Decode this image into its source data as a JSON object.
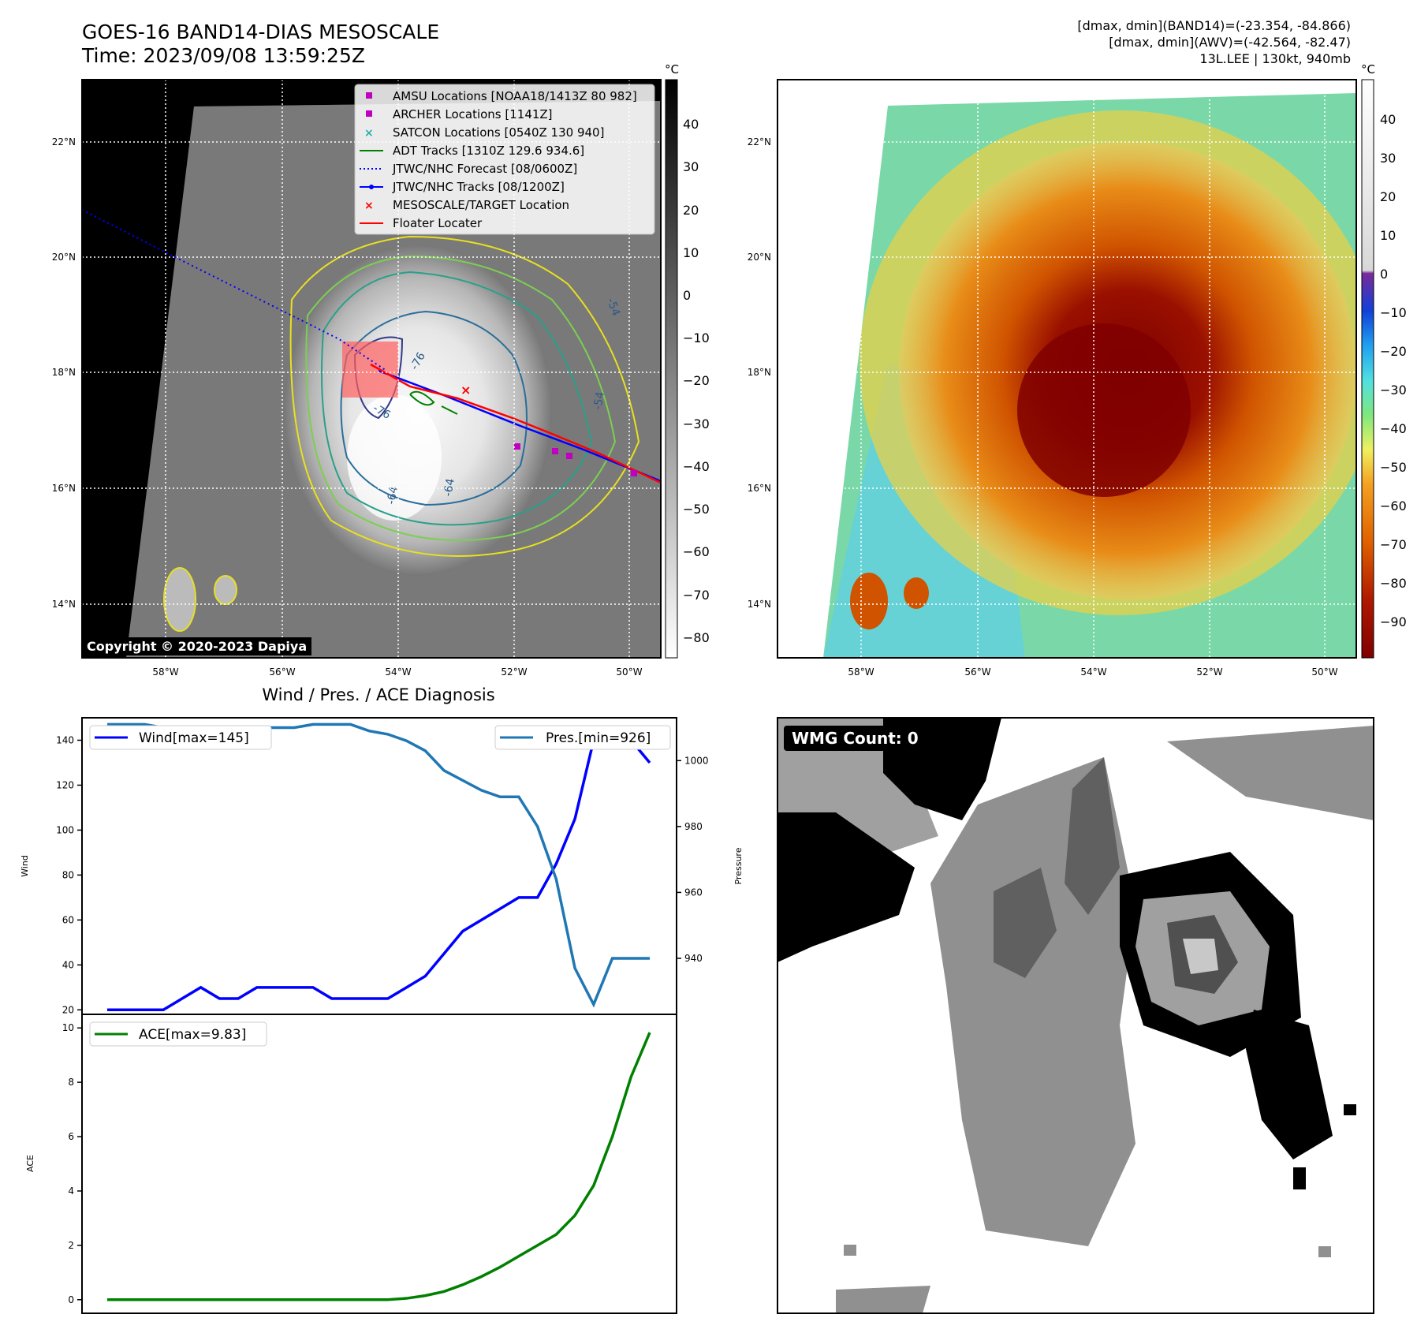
{
  "header": {
    "title_line1": "GOES-16 BAND14-DIAS MESOSCALE",
    "title_line2": "Time: 2023/09/08 13:59:25Z",
    "info_line1": "[dmax, dmin](BAND14)=(-23.354, -84.866)",
    "info_line2": "[dmax, dmin](AWV)=(-42.564, -82.47)",
    "info_line3": "13L.LEE | 130kt, 940mb"
  },
  "map_left": {
    "lat_labels": [
      "22°N",
      "20°N",
      "18°N",
      "16°N",
      "14°N"
    ],
    "lon_labels": [
      "58°W",
      "56°W",
      "54°W",
      "52°W",
      "50°W"
    ],
    "copyright": "Copyright © 2020-2023 Dapiya",
    "contour_labels": [
      "-64",
      "-64",
      "-76",
      "-76",
      "-54",
      "-54"
    ],
    "legend": [
      {
        "label": "AMSU Locations [NOAA18/1413Z 80 982]",
        "color": "#c000c0",
        "marker": "square"
      },
      {
        "label": "ARCHER Locations [1141Z]",
        "color": "#c000c0",
        "marker": "square"
      },
      {
        "label": "SATCON Locations [0540Z 130 940]",
        "color": "#20b2aa",
        "marker": "x"
      },
      {
        "label": "ADT Tracks [1310Z 129.6 934.6]",
        "color": "#008000",
        "marker": "line"
      },
      {
        "label": "JTWC/NHC Forecast [08/0600Z]",
        "color": "#0000ff",
        "marker": "dotted"
      },
      {
        "label": "JTWC/NHC Tracks [08/1200Z]",
        "color": "#0000ff",
        "marker": "line-dot"
      },
      {
        "label": "MESOSCALE/TARGET Location",
        "color": "#ff0000",
        "marker": "x"
      },
      {
        "label": "Floater Locater",
        "color": "#ff0000",
        "marker": "line"
      }
    ],
    "colorbar_unit": "°C",
    "colorbar_ticks": [
      "40",
      "30",
      "20",
      "10",
      "0",
      "−10",
      "−20",
      "−30",
      "−40",
      "−50",
      "−60",
      "−70",
      "−80"
    ]
  },
  "map_right": {
    "lat_labels": [
      "22°N",
      "20°N",
      "18°N",
      "16°N",
      "14°N"
    ],
    "lon_labels": [
      "58°W",
      "56°W",
      "54°W",
      "52°W",
      "50°W"
    ],
    "colorbar_unit": "°C",
    "colorbar_ticks": [
      "40",
      "30",
      "20",
      "10",
      "0",
      "−10",
      "−20",
      "−30",
      "−40",
      "−50",
      "−60",
      "−70",
      "−80",
      "−90"
    ]
  },
  "wmg": {
    "label": "WMG Count: 0"
  },
  "chart_data": [
    {
      "type": "line",
      "title": "Wind / Pres. / ACE Diagnosis",
      "ylabel": "Wind",
      "ylabel_right": "Pressure",
      "x": [
        0,
        1,
        2,
        3,
        4,
        5,
        6,
        7,
        8,
        9,
        10,
        11,
        12,
        13,
        14,
        15,
        16,
        17,
        18,
        19,
        20,
        21,
        22,
        23,
        24,
        25,
        26,
        27,
        28,
        29
      ],
      "ylim": [
        18,
        150
      ],
      "yticks": [
        "20",
        "40",
        "60",
        "80",
        "100",
        "120",
        "140"
      ],
      "ylim_right": [
        923,
        1013
      ],
      "yticks_right": [
        "940",
        "960",
        "980",
        "1000"
      ],
      "legend_placement": "top-left / top-right",
      "series": [
        {
          "name": "Wind[max=145]",
          "axis": "left",
          "color": "#0000ff",
          "values": [
            20,
            20,
            20,
            20,
            25,
            30,
            25,
            25,
            30,
            30,
            30,
            30,
            25,
            25,
            25,
            25,
            30,
            35,
            45,
            55,
            60,
            65,
            70,
            70,
            85,
            105,
            140,
            145,
            140,
            130
          ]
        },
        {
          "name": "Pres.[min=926]",
          "axis": "right",
          "color": "#1f77b4",
          "values": [
            1011,
            1011,
            1011,
            1010,
            1010,
            1010,
            1010,
            1010,
            1010,
            1010,
            1010,
            1011,
            1011,
            1011,
            1009,
            1008,
            1006,
            1003,
            997,
            994,
            991,
            989,
            989,
            980,
            964,
            937,
            926,
            940,
            940,
            940
          ]
        }
      ]
    },
    {
      "type": "line",
      "ylabel": "ACE",
      "x": [
        0,
        1,
        2,
        3,
        4,
        5,
        6,
        7,
        8,
        9,
        10,
        11,
        12,
        13,
        14,
        15,
        16,
        17,
        18,
        19,
        20,
        21,
        22,
        23,
        24,
        25,
        26,
        27,
        28,
        29
      ],
      "ylim": [
        -0.5,
        10.5
      ],
      "yticks": [
        "0",
        "2",
        "4",
        "6",
        "8",
        "10"
      ],
      "legend_placement": "top-left",
      "series": [
        {
          "name": "ACE[max=9.83]",
          "color": "#008000",
          "values": [
            0,
            0,
            0,
            0,
            0,
            0,
            0,
            0,
            0,
            0,
            0,
            0,
            0,
            0,
            0,
            0,
            0.05,
            0.15,
            0.3,
            0.55,
            0.85,
            1.2,
            1.6,
            2.0,
            2.4,
            3.1,
            4.2,
            6.0,
            8.2,
            9.83
          ]
        }
      ]
    }
  ]
}
